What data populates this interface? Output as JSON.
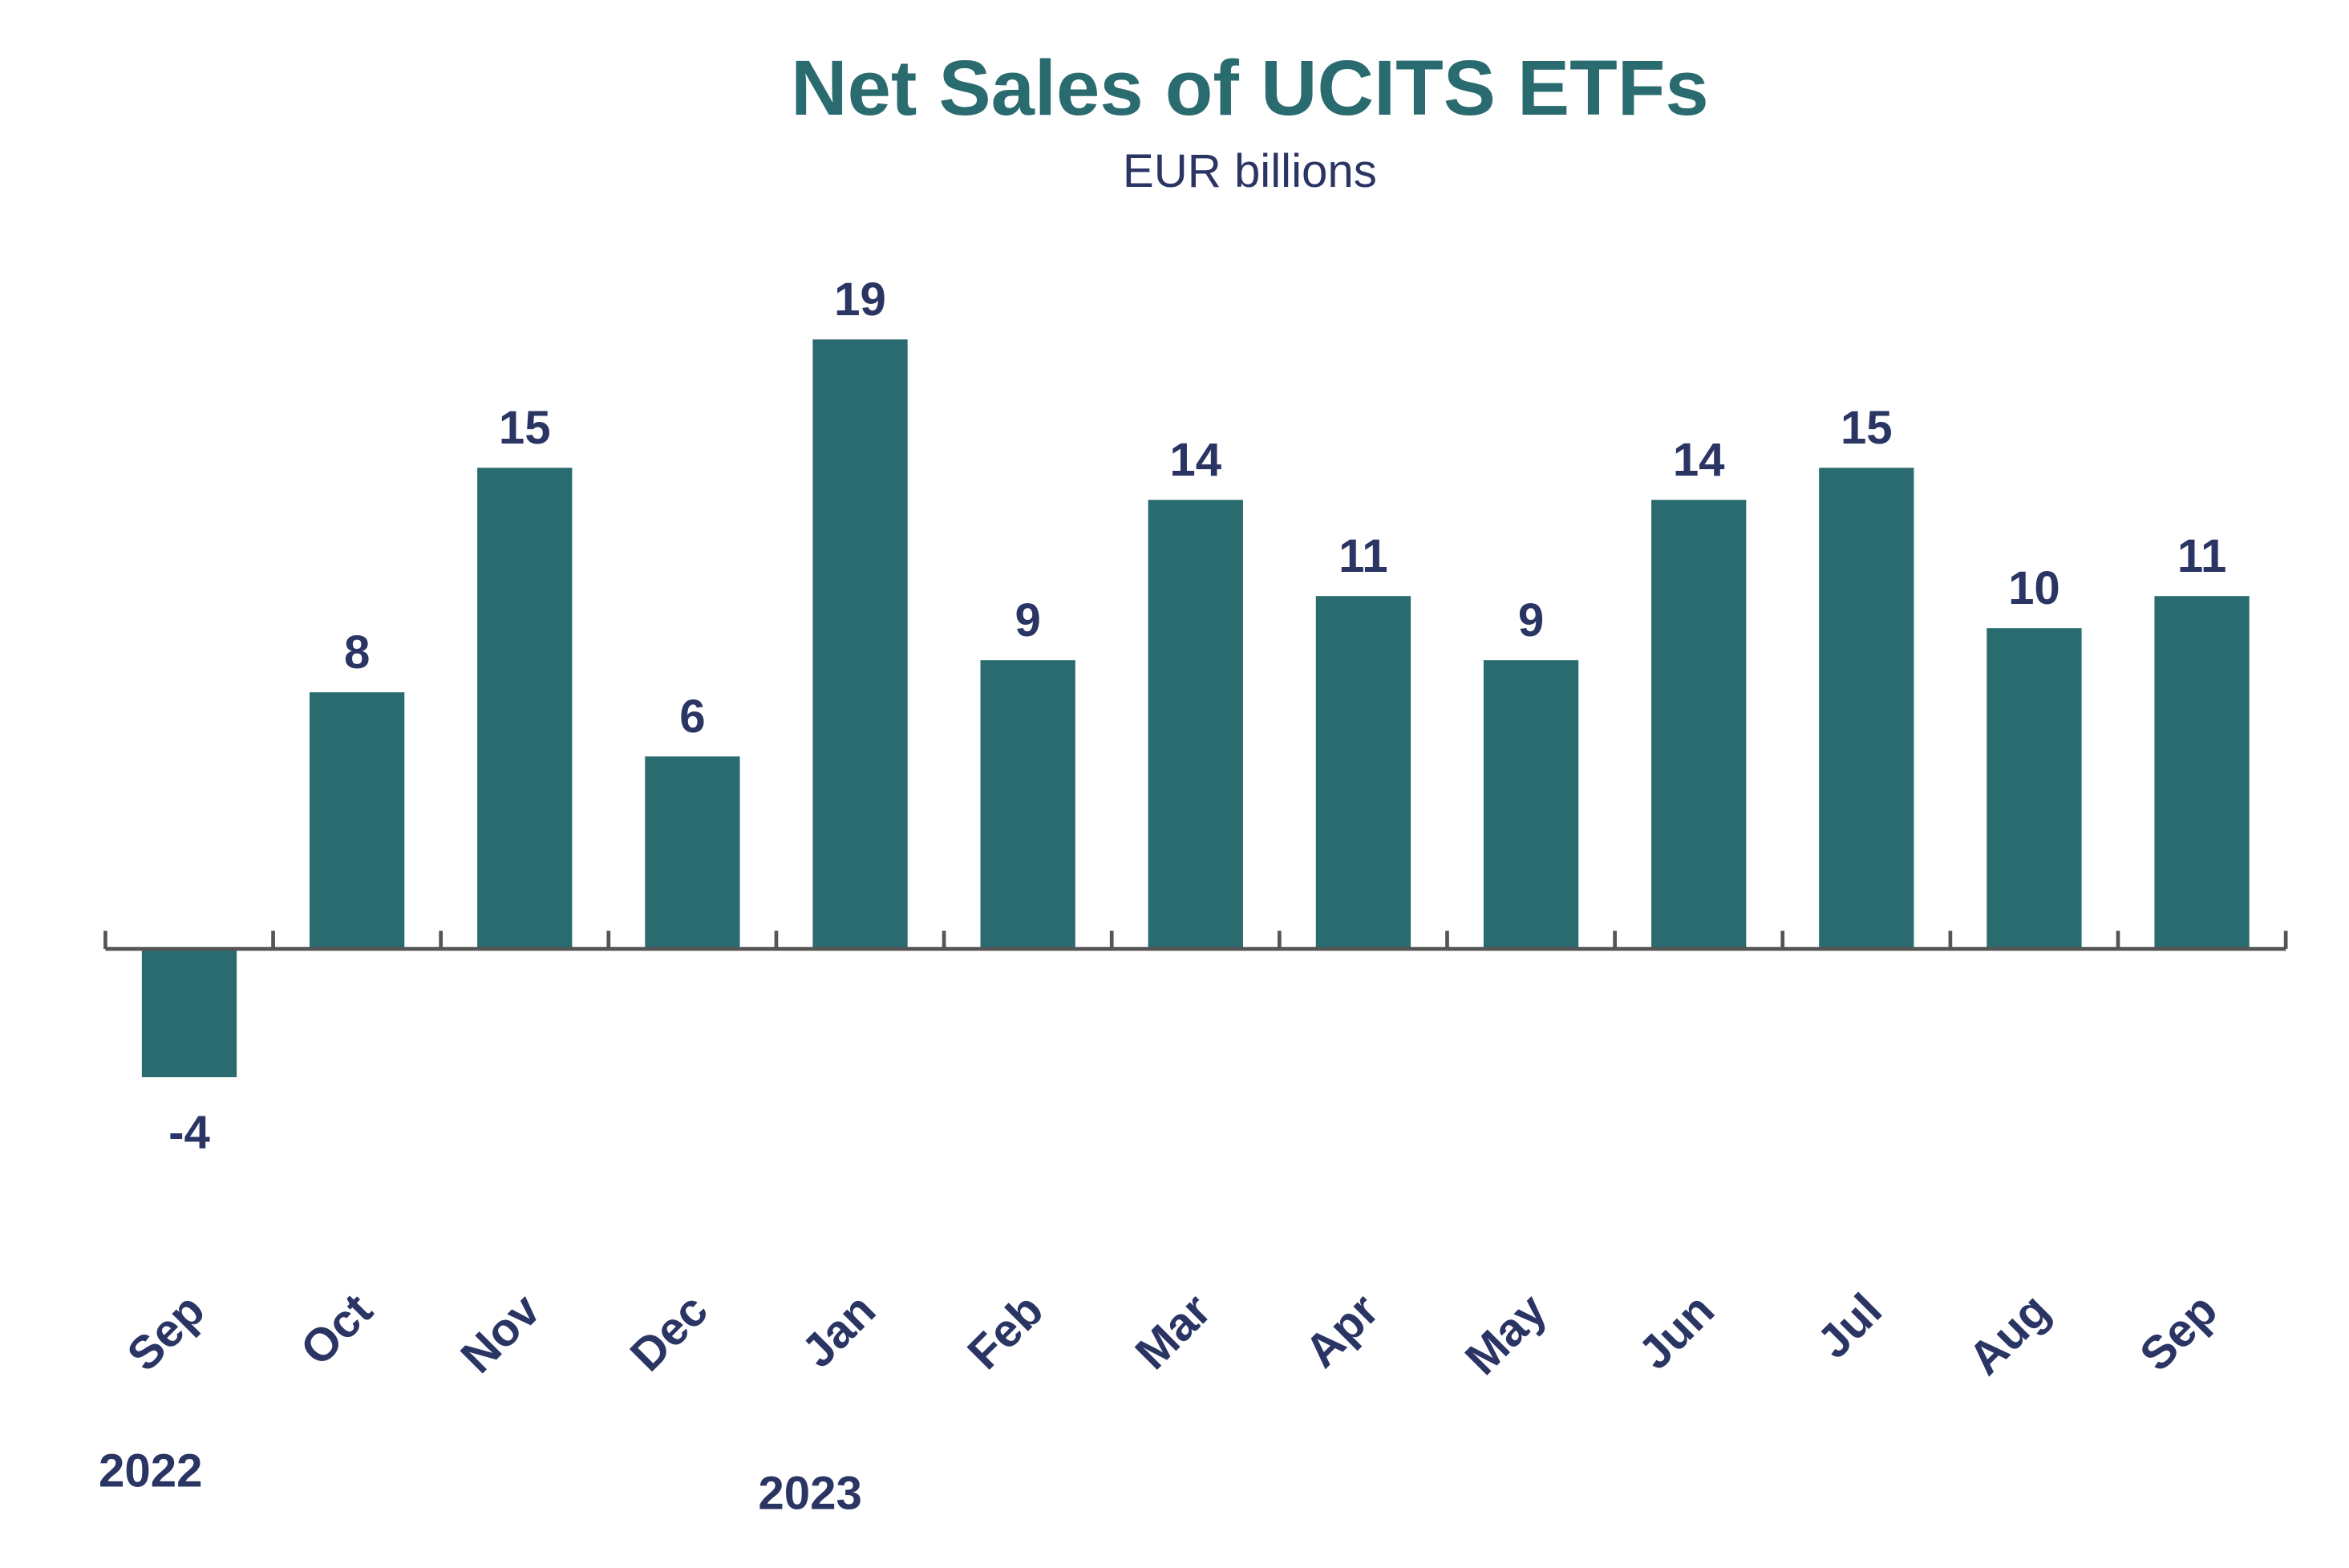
{
  "chart_data": {
    "type": "bar",
    "title": "Net Sales of UCITS ETFs",
    "subtitle": "EUR billions",
    "categories": [
      "Sep",
      "Oct",
      "Nov",
      "Dec",
      "Jan",
      "Feb",
      "Mar",
      "Apr",
      "May",
      "Jun",
      "Jul",
      "Aug",
      "Sep"
    ],
    "values": [
      -4,
      8,
      15,
      6,
      19,
      9,
      14,
      11,
      9,
      14,
      15,
      10,
      11
    ],
    "year_labels": [
      "2022",
      "2023"
    ],
    "xlabel": "",
    "ylabel": "",
    "grid": false,
    "legend": "none",
    "colors": {
      "bar": "#2a6b6f",
      "text": "#2b3564",
      "axis": "#555555"
    }
  }
}
